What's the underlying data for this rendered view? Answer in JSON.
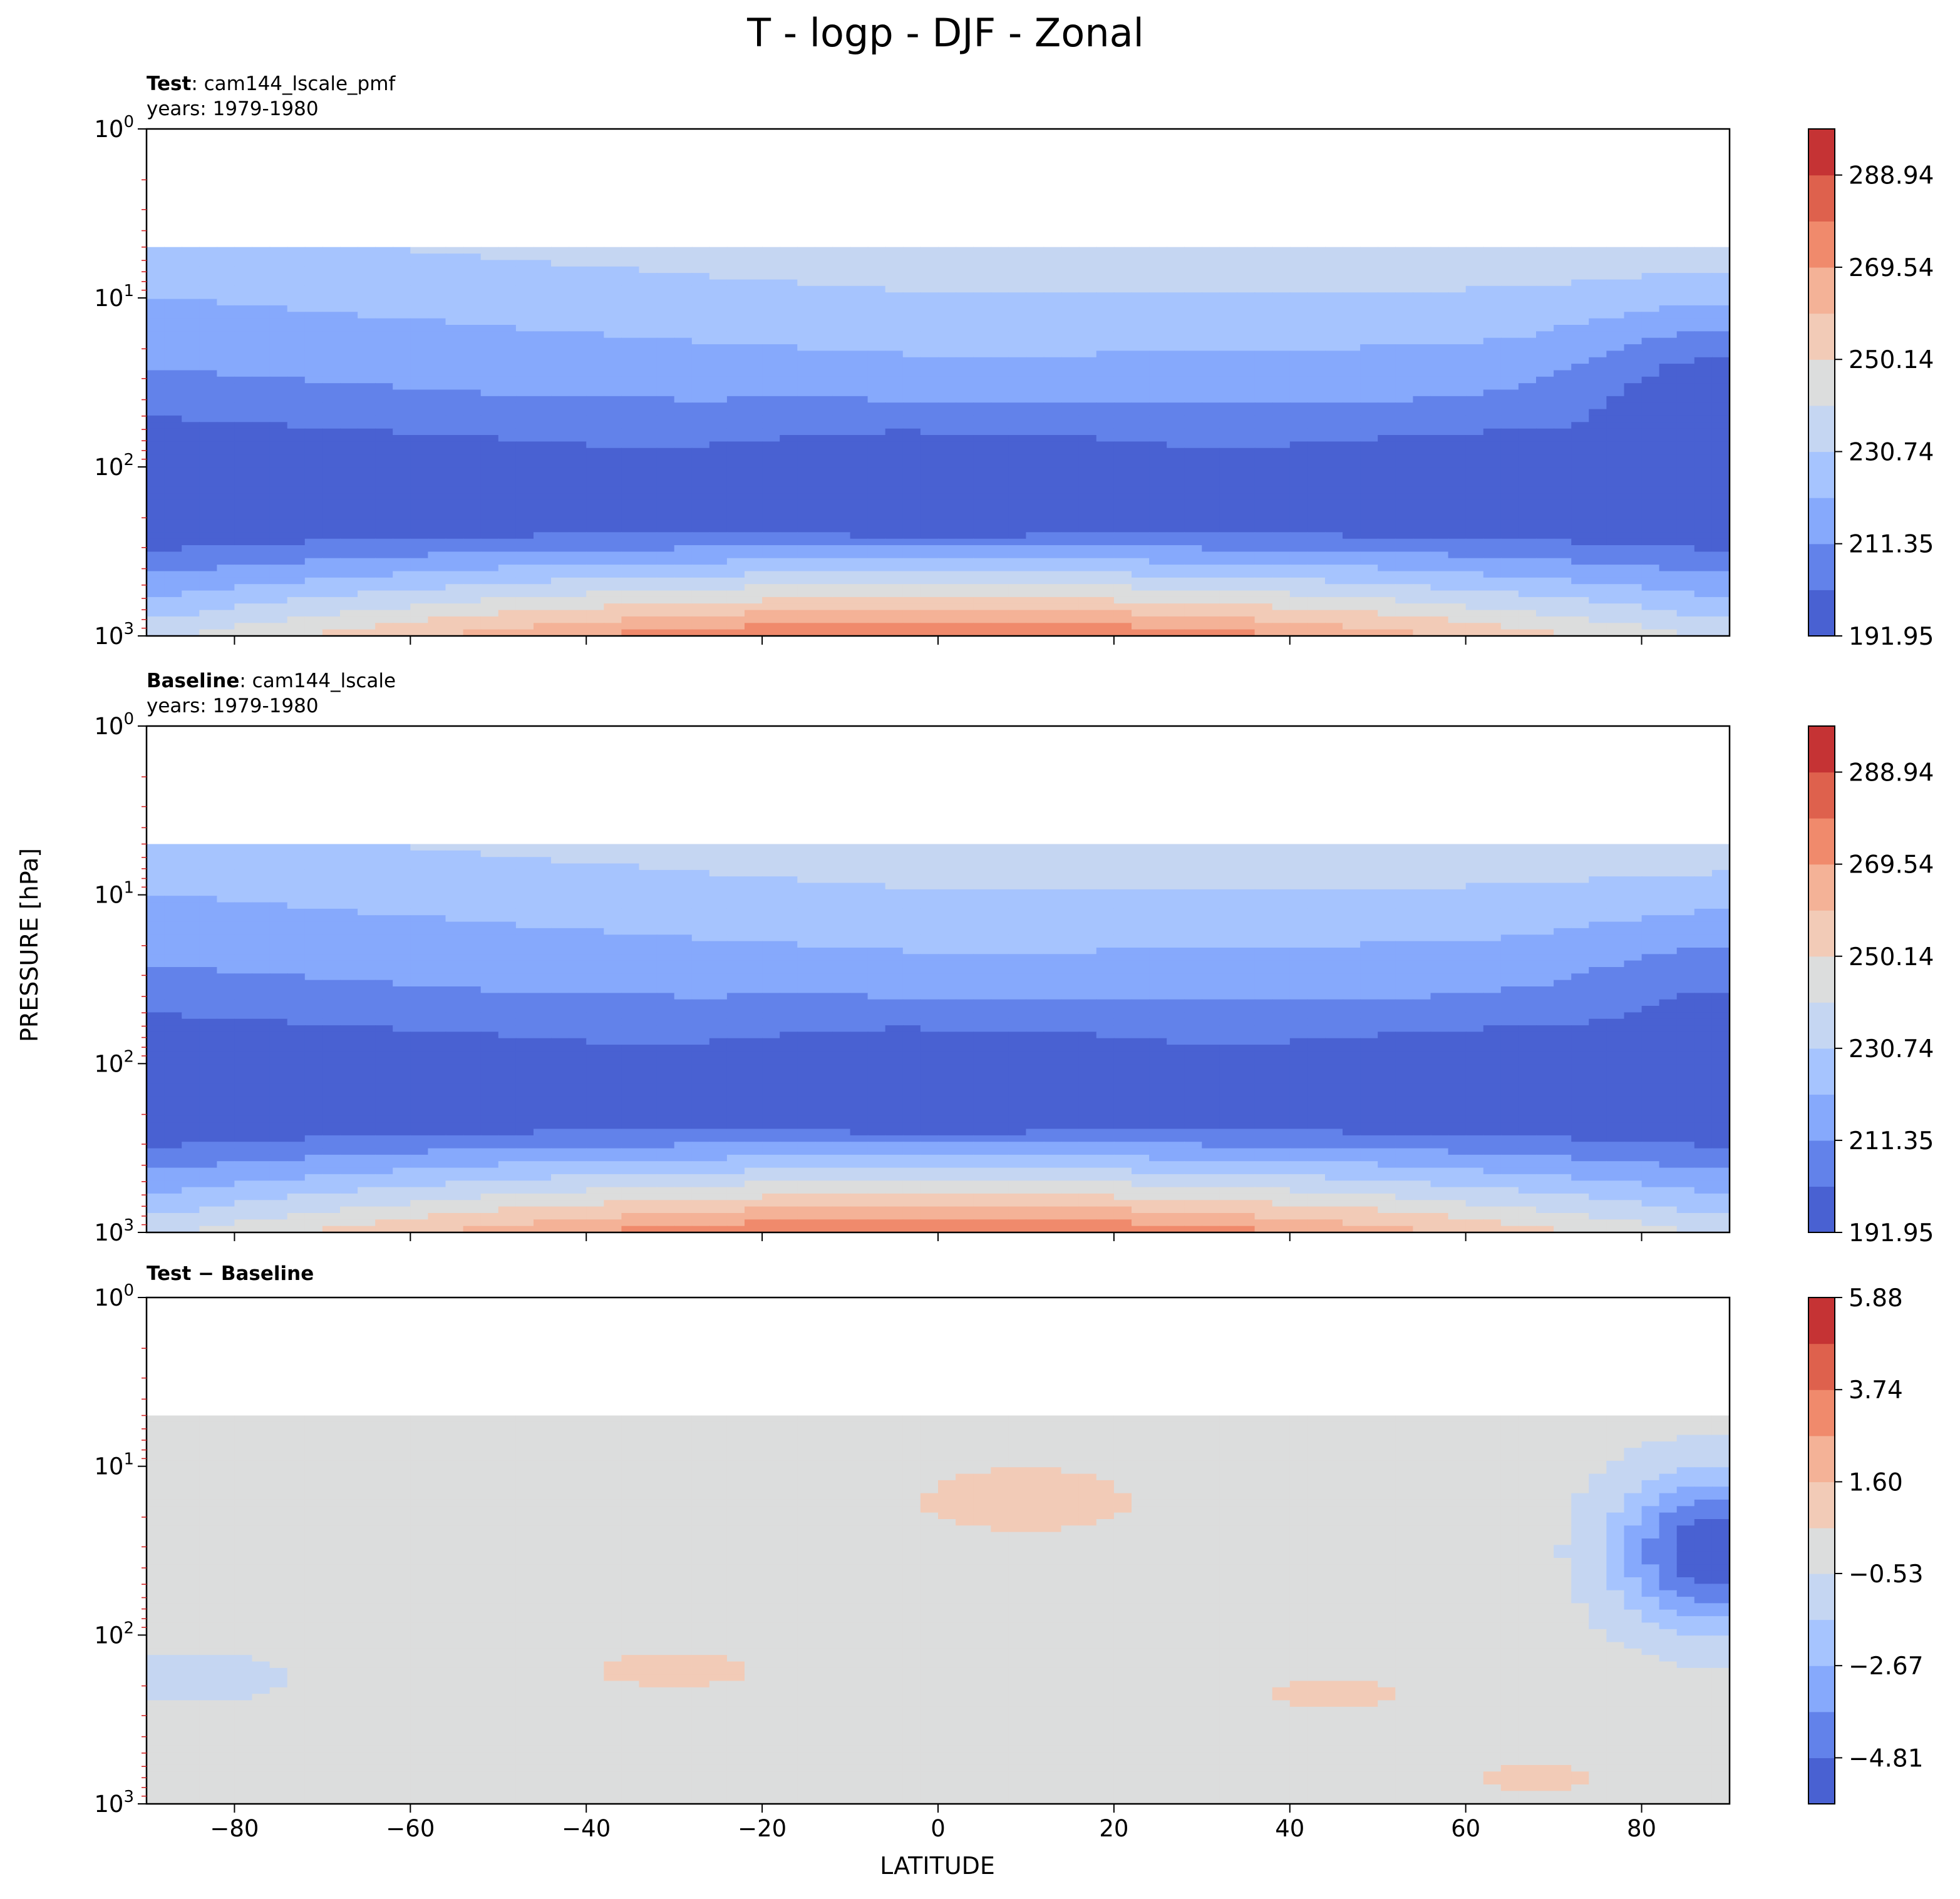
{
  "suptitle": "T - logp - DJF - Zonal",
  "xlabel": "LATITUDE",
  "ylabel": "PRESSURE [hPa]",
  "panels": [
    {
      "title_bold": "Test",
      "title_rest": ": cam144_lscale_pmf",
      "years": "years: 1979-1980"
    },
    {
      "title_bold": "Baseline",
      "title_rest": ": cam144_lscale",
      "years": "years: 1979-1980"
    },
    {
      "title_bold": "Test − Baseline",
      "title_rest": "",
      "years": ""
    }
  ],
  "colors": {
    "axes": "#000000",
    "minor_ticks": "#d62728",
    "cmap": [
      "#4961d2",
      "#6282ea",
      "#86a9fc",
      "#a6c4fe",
      "#c5d6f2",
      "#dcdddd",
      "#f2cbb7",
      "#f4b297",
      "#f08a6c",
      "#de614d",
      "#c53334"
    ]
  },
  "chart_data": [
    {
      "type": "contourf",
      "panel": "Test",
      "title": "Test: cam144_lscale_pmf",
      "subtitle": "years: 1979-1980",
      "xlabel": "LATITUDE",
      "ylabel": "PRESSURE [hPa]",
      "xlim": [
        -90,
        90
      ],
      "ylim": [
        1000,
        1
      ],
      "yscale": "log",
      "xticks": [
        -80,
        -60,
        -40,
        -20,
        0,
        20,
        40,
        60,
        80
      ],
      "yticks": [
        1,
        10,
        100,
        1000
      ],
      "yticklabels": [
        [
          "10",
          "0"
        ],
        [
          "10",
          "1"
        ],
        [
          "10",
          "2"
        ],
        [
          "10",
          "3"
        ]
      ],
      "data_top_hpa": 5,
      "colorbar_min": 191.95,
      "colorbar_max": 298.64,
      "colorbar_ticks": [
        191.95,
        211.35,
        230.74,
        250.14,
        269.54,
        288.94
      ],
      "colorbar_tick_labels": [
        "191.95",
        "211.35",
        "230.74",
        "250.14",
        "269.54",
        "288.94"
      ],
      "levels": [
        191.95,
        201.65,
        211.35,
        221.05,
        230.74,
        240.44,
        250.14,
        259.84,
        269.54,
        279.24,
        288.94,
        298.64
      ],
      "field_description": "Zonal-mean temperature: coldest (~195 K) near 100 hPa over the tropics and ~40 hPa at 80N; warmest (~295 K) near the tropical surface."
    },
    {
      "type": "contourf",
      "panel": "Baseline",
      "title": "Baseline: cam144_lscale",
      "subtitle": "years: 1979-1980",
      "xlabel": "LATITUDE",
      "ylabel": "PRESSURE [hPa]",
      "xlim": [
        -90,
        90
      ],
      "ylim": [
        1000,
        1
      ],
      "yscale": "log",
      "xticks": [
        -80,
        -60,
        -40,
        -20,
        0,
        20,
        40,
        60,
        80
      ],
      "yticks": [
        1,
        10,
        100,
        1000
      ],
      "yticklabels": [
        [
          "10",
          "0"
        ],
        [
          "10",
          "1"
        ],
        [
          "10",
          "2"
        ],
        [
          "10",
          "3"
        ]
      ],
      "data_top_hpa": 5,
      "colorbar_min": 191.95,
      "colorbar_max": 298.64,
      "colorbar_ticks": [
        191.95,
        211.35,
        230.74,
        250.14,
        269.54,
        288.94
      ],
      "colorbar_tick_labels": [
        "191.95",
        "211.35",
        "230.74",
        "250.14",
        "269.54",
        "288.94"
      ],
      "levels": [
        191.95,
        201.65,
        211.35,
        221.05,
        230.74,
        240.44,
        250.14,
        259.84,
        269.54,
        279.24,
        288.94,
        298.64
      ],
      "field_description": "Baseline zonal-mean temperature; same structure as Test but a slightly warmer Arctic stratosphere (~205 K at 80N)."
    },
    {
      "type": "contourf",
      "panel": "Test - Baseline",
      "title": "Test − Baseline",
      "xlabel": "LATITUDE",
      "ylabel": "PRESSURE [hPa]",
      "xlim": [
        -90,
        90
      ],
      "ylim": [
        1000,
        1
      ],
      "yscale": "log",
      "xticks": [
        -80,
        -60,
        -40,
        -20,
        0,
        20,
        40,
        60,
        80
      ],
      "yticks": [
        1,
        10,
        100,
        1000
      ],
      "yticklabels": [
        [
          "10",
          "0"
        ],
        [
          "10",
          "1"
        ],
        [
          "10",
          "2"
        ],
        [
          "10",
          "3"
        ]
      ],
      "data_top_hpa": 5,
      "colorbar_min": -5.88,
      "colorbar_max": 5.88,
      "colorbar_ticks": [
        -4.81,
        -2.67,
        -0.53,
        1.6,
        3.74,
        5.88
      ],
      "colorbar_tick_labels": [
        "−4.81",
        "−2.67",
        "−0.53",
        "1.60",
        "3.74",
        "5.88"
      ],
      "levels": [
        -5.88,
        -4.81,
        -3.74,
        -2.67,
        -1.6,
        -0.53,
        0.53,
        1.6,
        2.67,
        3.74,
        4.81,
        5.88
      ],
      "field_description": "Difference mostly within ±0.5 K; Arctic stratosphere (~30 hPa, 85N) about −5 K colder; small warm patches (+0.5 to +1.6 K) in the tropics/midlatitudes."
    }
  ]
}
